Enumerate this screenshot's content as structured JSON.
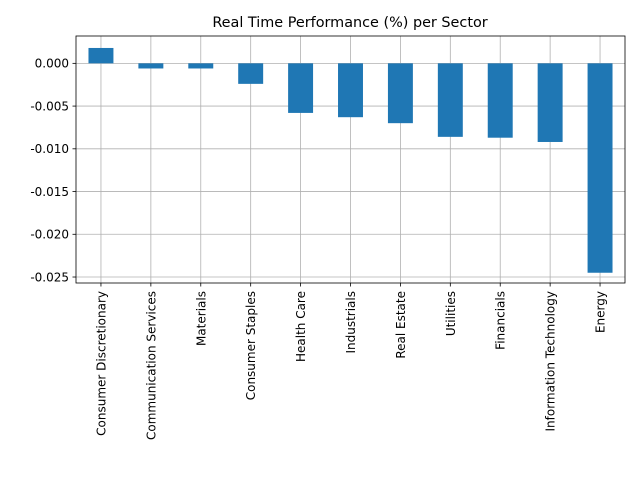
{
  "chart_data": {
    "type": "bar",
    "title": "Real Time Performance (%) per Sector",
    "xlabel": "",
    "ylabel": "",
    "categories": [
      "Consumer Discretionary",
      "Communication Services",
      "Materials",
      "Consumer Staples",
      "Health Care",
      "Industrials",
      "Real Estate",
      "Utilities",
      "Financials",
      "Information Technology",
      "Energy"
    ],
    "values": [
      0.0018,
      -0.0006,
      -0.0006,
      -0.0024,
      -0.0058,
      -0.0063,
      -0.007,
      -0.0086,
      -0.0087,
      -0.0092,
      -0.0245
    ],
    "ylim": [
      -0.0257,
      0.0032
    ],
    "yticks": [
      "0.000",
      "-0.005",
      "-0.010",
      "-0.015",
      "-0.020",
      "-0.025"
    ],
    "ytick_values": [
      0.0,
      -0.005,
      -0.01,
      -0.015,
      -0.02,
      -0.025
    ],
    "grid": true,
    "legend": "none",
    "bar_color": "#1f77b4",
    "grid_color": "#b0b0b0"
  }
}
